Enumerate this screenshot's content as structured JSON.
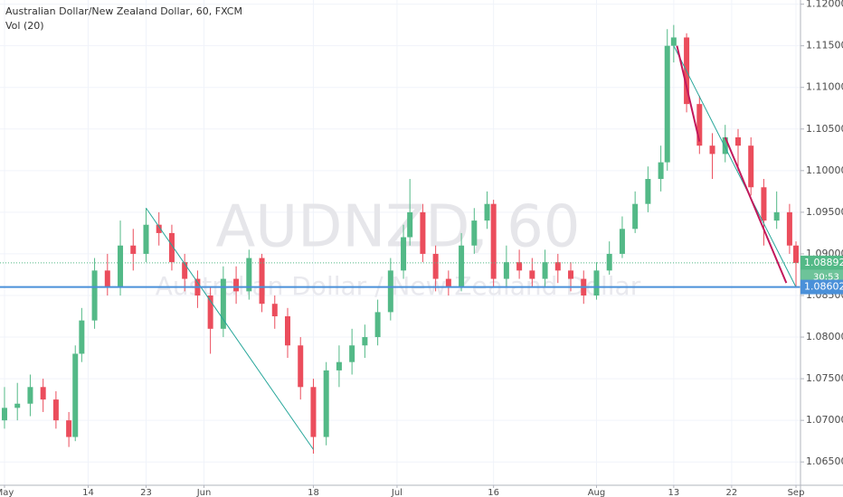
{
  "chart_data": {
    "type": "candlestick",
    "title": "Australian Dollar/New Zealand Dollar, 60, FXCM",
    "indicator_label": "Vol (20)",
    "watermark": [
      "AUDNZD, 60",
      "Australian Dollar / New Zealand Dollar"
    ],
    "x": [
      0,
      2,
      4,
      6,
      8,
      10,
      11,
      12,
      14,
      16,
      18,
      20,
      22,
      24,
      26,
      28,
      30,
      32,
      34,
      36,
      38,
      40,
      42,
      44,
      46,
      48,
      50,
      52,
      54,
      56,
      58,
      60,
      62,
      63,
      65,
      67,
      69,
      71,
      73,
      75,
      76,
      78,
      80,
      82,
      84,
      86,
      88,
      90,
      92,
      94,
      96,
      98,
      100,
      102,
      103,
      104,
      106,
      108,
      110,
      112,
      114,
      116,
      118,
      120,
      122,
      123
    ],
    "open": [
      1.07,
      1.0715,
      1.072,
      1.074,
      1.0725,
      1.07,
      1.068,
      1.078,
      1.082,
      1.088,
      1.086,
      1.091,
      1.09,
      1.0935,
      1.0925,
      1.089,
      1.087,
      1.085,
      1.081,
      1.087,
      1.0855,
      1.0895,
      1.084,
      1.0825,
      1.079,
      1.074,
      1.068,
      1.076,
      1.077,
      1.079,
      1.08,
      1.083,
      1.088,
      1.092,
      1.095,
      1.09,
      1.087,
      1.086,
      1.091,
      1.094,
      1.096,
      1.087,
      1.089,
      1.088,
      1.087,
      1.089,
      1.088,
      1.087,
      1.085,
      1.088,
      1.09,
      1.093,
      1.096,
      1.099,
      1.101,
      1.115,
      1.116,
      1.108,
      1.103,
      1.102,
      1.104,
      1.103,
      1.098,
      1.094,
      1.095,
      1.091
    ],
    "high": [
      1.074,
      1.0745,
      1.0755,
      1.075,
      1.0735,
      1.071,
      1.079,
      1.0835,
      1.0895,
      1.09,
      1.094,
      1.093,
      1.0955,
      1.095,
      1.0935,
      1.09,
      1.088,
      1.086,
      1.0885,
      1.0885,
      1.0905,
      1.09,
      1.085,
      1.0835,
      1.08,
      1.075,
      1.077,
      1.079,
      1.081,
      1.0815,
      1.0845,
      1.0895,
      1.0935,
      1.099,
      1.096,
      1.091,
      1.088,
      1.0925,
      1.0955,
      1.0975,
      1.0965,
      1.091,
      1.0905,
      1.0895,
      1.0905,
      1.09,
      1.089,
      1.088,
      1.089,
      1.0915,
      1.0945,
      1.0975,
      1.1005,
      1.103,
      1.117,
      1.1175,
      1.1165,
      1.109,
      1.1045,
      1.1055,
      1.105,
      1.104,
      1.099,
      1.0975,
      1.096,
      1.0915
    ],
    "low": [
      1.069,
      1.07,
      1.0705,
      1.071,
      1.069,
      1.0668,
      1.0675,
      1.077,
      1.081,
      1.085,
      1.085,
      1.088,
      1.089,
      1.091,
      1.088,
      1.0855,
      1.0835,
      1.078,
      1.08,
      1.084,
      1.0845,
      1.083,
      1.081,
      1.0775,
      1.0725,
      1.066,
      1.067,
      1.074,
      1.0755,
      1.0775,
      1.079,
      1.082,
      1.087,
      1.091,
      1.089,
      1.0855,
      1.085,
      1.0855,
      1.09,
      1.093,
      1.086,
      1.086,
      1.087,
      1.086,
      1.086,
      1.0865,
      1.0855,
      1.084,
      1.0845,
      1.0875,
      1.0895,
      1.0925,
      1.095,
      1.0975,
      1.1,
      1.113,
      1.107,
      1.102,
      1.099,
      1.101,
      1.1,
      1.097,
      1.091,
      1.093,
      1.09,
      1.086
    ],
    "close": [
      1.0715,
      1.072,
      1.074,
      1.0725,
      1.07,
      1.068,
      1.078,
      1.082,
      1.088,
      1.086,
      1.091,
      1.09,
      1.0935,
      1.0925,
      1.089,
      1.087,
      1.085,
      1.081,
      1.087,
      1.0855,
      1.0895,
      1.084,
      1.0825,
      1.079,
      1.074,
      1.068,
      1.076,
      1.077,
      1.079,
      1.08,
      1.083,
      1.088,
      1.092,
      1.095,
      1.09,
      1.087,
      1.086,
      1.091,
      1.094,
      1.096,
      1.087,
      1.089,
      1.088,
      1.087,
      1.089,
      1.088,
      1.087,
      1.085,
      1.088,
      1.09,
      1.093,
      1.096,
      1.099,
      1.101,
      1.115,
      1.116,
      1.108,
      1.103,
      1.102,
      1.104,
      1.103,
      1.098,
      1.094,
      1.095,
      1.091,
      1.0889
    ],
    "up_color": "#53b987",
    "down_color": "#eb4d5c",
    "xlim": [
      -0.7,
      123.7
    ],
    "ylim": [
      1.0622,
      1.1205
    ],
    "xticks": [
      {
        "value": 0,
        "label": "May"
      },
      {
        "value": 13,
        "label": "14"
      },
      {
        "value": 22,
        "label": "23"
      },
      {
        "value": 31,
        "label": "Jun"
      },
      {
        "value": 48,
        "label": "18"
      },
      {
        "value": 61,
        "label": "Jul"
      },
      {
        "value": 76,
        "label": "16"
      },
      {
        "value": 92,
        "label": "Aug"
      },
      {
        "value": 104,
        "label": "13"
      },
      {
        "value": 113,
        "label": "22"
      },
      {
        "value": 123,
        "label": "Sep"
      }
    ],
    "yticks": [
      {
        "value": 1.065,
        "label": "1.06500"
      },
      {
        "value": 1.07,
        "label": "1.07000"
      },
      {
        "value": 1.075,
        "label": "1.07500"
      },
      {
        "value": 1.08,
        "label": "1.08000"
      },
      {
        "value": 1.085,
        "label": "1.08500"
      },
      {
        "value": 1.09,
        "label": "1.09000"
      },
      {
        "value": 1.095,
        "label": "1.09500"
      },
      {
        "value": 1.1,
        "label": "1.10000"
      },
      {
        "value": 1.105,
        "label": "1.10500"
      },
      {
        "value": 1.11,
        "label": "1.11000"
      },
      {
        "value": 1.115,
        "label": "1.11500"
      },
      {
        "value": 1.12,
        "label": "1.12000"
      }
    ],
    "grid": true,
    "last_price": 1.08892,
    "last_price_color": "#53b987",
    "countdown": "30:53",
    "level": 1.08602,
    "level_color": "#4a90d9",
    "trendlines": [
      {
        "color": "#26a69a",
        "x": [
          22,
          48
        ],
        "y": [
          1.0955,
          1.0665
        ]
      },
      {
        "color": "#26a69a",
        "x": [
          104,
          123
        ],
        "y": [
          1.115,
          1.086
        ]
      },
      {
        "color": "#c2185b",
        "x": [
          104.5,
          108
        ],
        "y": [
          1.115,
          1.1035
        ]
      },
      {
        "color": "#c2185b",
        "x": [
          112,
          121.5
        ],
        "y": [
          1.104,
          1.0865
        ]
      }
    ]
  }
}
